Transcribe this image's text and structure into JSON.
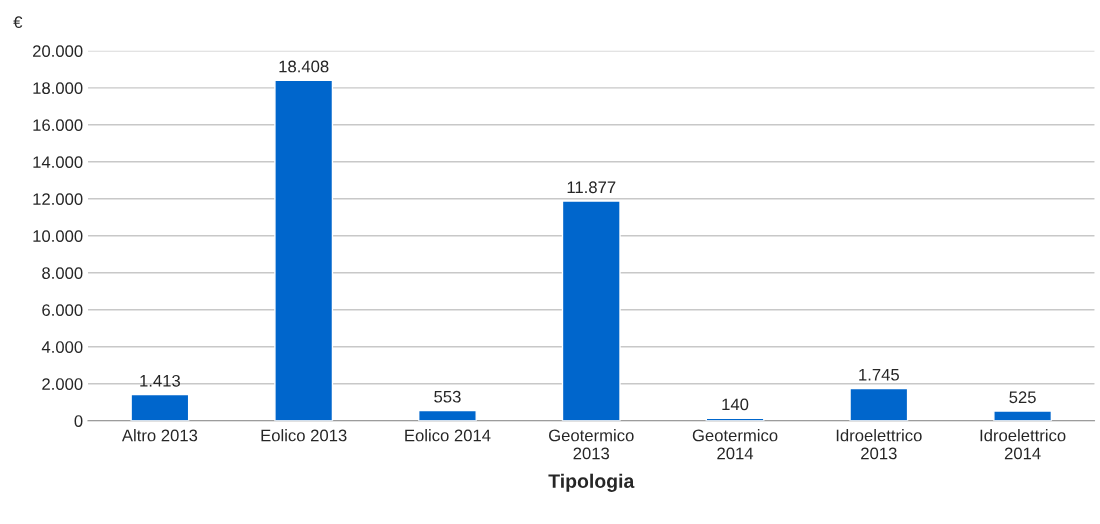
{
  "chart_data": {
    "type": "bar",
    "xlabel": "Tipologia",
    "ylabel": "€",
    "categories": [
      "Altro 2013",
      "Eolico 2013",
      "Eolico 2014",
      "Geotermico\n2013",
      "Geotermico\n2014",
      "Idroelettrico\n2013",
      "Idroelettrico\n2014"
    ],
    "values": [
      1413,
      18408,
      553,
      11877,
      140,
      1745,
      525
    ],
    "value_labels": [
      "1.413",
      "18.408",
      "553",
      "11.877",
      "140",
      "1.745",
      "525"
    ],
    "color": "#0066cc",
    "ylim": [
      0,
      20000
    ],
    "yticks": [
      0,
      {
        "value": 2000,
        "label": "2.000"
      },
      {
        "value": 4000,
        "label": "4.000"
      },
      {
        "value": 6000,
        "label": "6.000"
      },
      {
        "value": 8000,
        "label": "8.000"
      },
      {
        "value": 10000,
        "label": "10.000"
      },
      {
        "value": 12000,
        "label": "12.000"
      },
      {
        "value": 14000,
        "label": "14.000"
      },
      {
        "value": 16000,
        "label": "16.000"
      },
      {
        "value": 18000,
        "label": "18.000"
      },
      {
        "value": 20000,
        "label": "20.000"
      }
    ],
    "grid": "y"
  }
}
